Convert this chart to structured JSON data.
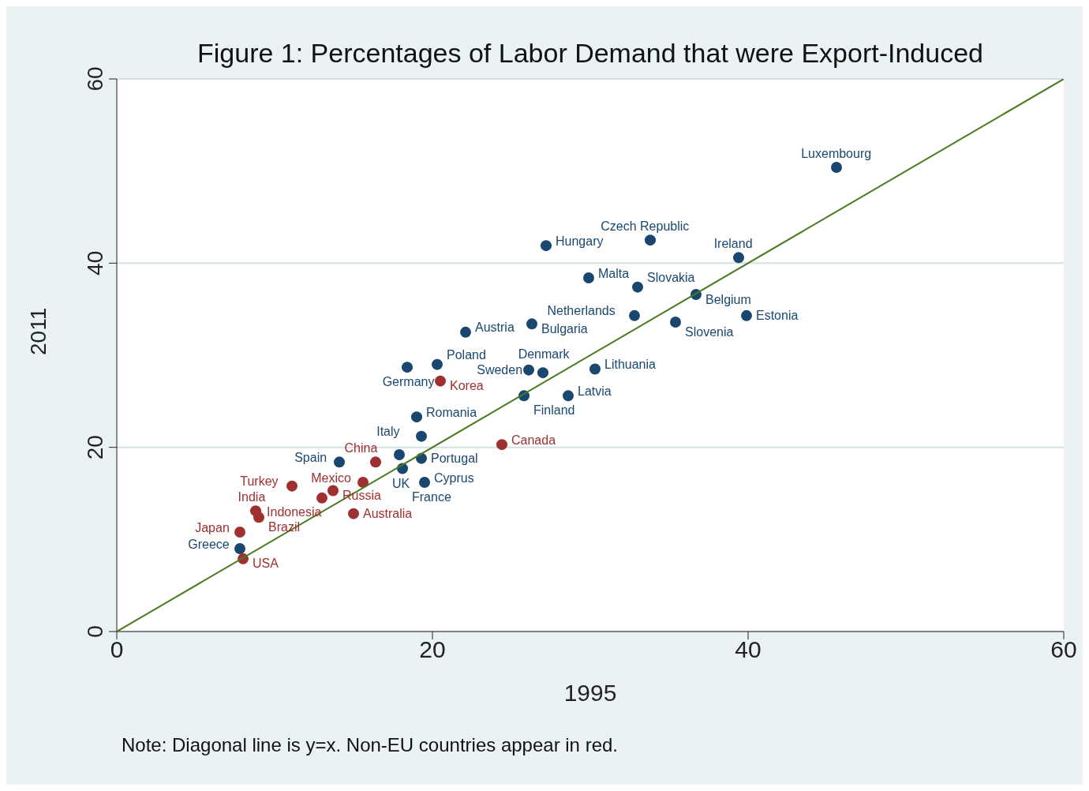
{
  "chart_data": {
    "type": "scatter",
    "title": "Figure 1: Percentages of Labor Demand that were Export-Induced",
    "xlabel": "1995",
    "ylabel": "2011",
    "annotations": [
      "Note: Diagonal line is y=x. Non-EU countries appear in red."
    ],
    "xlim": [
      0,
      60
    ],
    "xticks": [
      0,
      20,
      40,
      60
    ],
    "ylim": [
      0,
      60
    ],
    "yticks": [
      0,
      20,
      40,
      60
    ],
    "grid": "y",
    "marker": "circle",
    "series": [
      {
        "color": "#1a476f",
        "x": [
          45.6,
          33.8,
          27.2,
          39.4,
          29.9,
          33.0,
          36.7,
          32.8,
          39.9,
          35.4,
          26.3,
          22.1,
          18.4,
          20.3,
          26.1,
          30.3,
          27.0,
          25.8,
          28.6,
          19.0,
          19.3,
          14.1,
          17.9,
          19.3,
          18.1,
          19.5,
          7.8
        ],
        "values": [
          50.4,
          42.5,
          41.9,
          40.6,
          38.4,
          37.4,
          36.6,
          34.3,
          34.3,
          33.6,
          33.4,
          32.5,
          28.7,
          29.0,
          28.4,
          28.5,
          28.1,
          25.6,
          25.6,
          23.3,
          21.2,
          18.4,
          19.2,
          18.8,
          17.7,
          16.2,
          9.0
        ],
        "value_labels": [
          "Luxembourg",
          "Czech Republic",
          "Hungary",
          "Ireland",
          "Malta",
          "Slovakia",
          "Belgium",
          "Netherlands",
          "Estonia",
          "Slovenia",
          "Bulgaria",
          "Austria",
          "Germany",
          "Poland",
          "Sweden",
          "Lithuania",
          "Denmark",
          "Finland",
          "Latvia",
          "Romania",
          "Italy",
          "Spain",
          "UK",
          "Portugal",
          "France",
          "Cyprus",
          "Greece"
        ]
      },
      {
        "color": "#a03030",
        "x": [
          20.5,
          24.4,
          11.1,
          15.6,
          13.7,
          16.4,
          13.0,
          15.0,
          8.8,
          9.0,
          7.8,
          8.0
        ],
        "values": [
          27.2,
          20.3,
          15.8,
          16.2,
          15.3,
          18.4,
          14.5,
          12.8,
          13.1,
          12.4,
          10.8,
          7.9
        ],
        "value_labels": [
          "Korea",
          "Canada",
          "Turkey",
          "Mexico",
          "Russia",
          "China",
          "Indonesia",
          "Australia",
          "India",
          "Brazil",
          "Japan",
          "USA"
        ]
      },
      {
        "type": "line",
        "color": "#4a7a20",
        "x": [
          0,
          60
        ],
        "values": [
          0,
          60
        ],
        "marker": "none",
        "line_style": "solid"
      }
    ]
  }
}
